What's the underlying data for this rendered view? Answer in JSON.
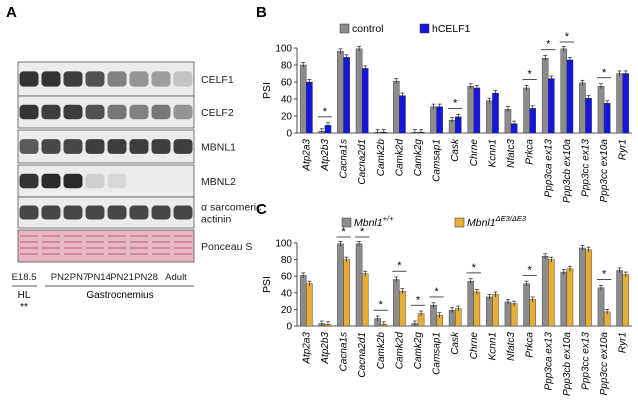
{
  "panels": {
    "a": "A",
    "b": "B",
    "c": "C"
  },
  "blot": {
    "bands": [
      {
        "label": "CELF1",
        "levels": [
          0.95,
          0.95,
          0.9,
          0.8,
          0.55,
          0.45,
          0.4,
          0.2
        ]
      },
      {
        "label": "CELF2",
        "levels": [
          0.95,
          0.9,
          0.9,
          0.8,
          0.6,
          0.55,
          0.6,
          0.45
        ]
      },
      {
        "label": "MBNL1",
        "levels": [
          0.75,
          0.85,
          0.85,
          0.9,
          0.9,
          0.9,
          0.9,
          0.9
        ]
      },
      {
        "label": "MBNL2",
        "levels": [
          0.95,
          1.0,
          1.0,
          0.15,
          0.1,
          0.0,
          0.0,
          0.0
        ]
      },
      {
        "label": "α sarcomeric\nactinin",
        "levels": [
          0.85,
          0.85,
          0.85,
          0.85,
          0.85,
          0.85,
          0.85,
          0.85
        ]
      },
      {
        "label": "Ponceau S",
        "levels": [
          0.5,
          0.5,
          0.5,
          0.5,
          0.5,
          0.5,
          0.5,
          0.5
        ]
      }
    ],
    "lanes": [
      "E18.5",
      "PN2",
      "PN7",
      "PN14",
      "PN21",
      "PN28",
      "Adult"
    ],
    "groups": [
      {
        "label": "HL",
        "sub": "**"
      },
      {
        "label": "Gastrocnemius"
      }
    ],
    "colors": {
      "band": "#2a2a2a",
      "background": "#ececec",
      "ponceau": "#e8b7c4",
      "ponceau_band": "#c9788f"
    }
  },
  "chart_data": [
    {
      "type": "bar",
      "panel": "B",
      "ylabel": "PSI",
      "ylim": [
        0,
        100
      ],
      "yticks": [
        0,
        20,
        40,
        60,
        80,
        100
      ],
      "legend_position": "top",
      "categories": [
        "Atp2a3",
        "Atp2b3",
        "Cacna1s",
        "Cacna2d1",
        "Camk2b",
        "Camk2d",
        "Camk2g",
        "Camsap1",
        "Cask",
        "Chrne",
        "Kcnn1",
        "Nfatc3",
        "Prkca",
        "Ppp3ca ex13",
        "Ppp3cb ex10a",
        "Ppp3cc ex13",
        "Ppp3cc ex10a",
        "Ryr1"
      ],
      "series": [
        {
          "name": "control",
          "color": "#8c8c8c",
          "values": [
            80,
            2,
            96,
            99,
            1,
            61,
            1,
            31,
            15,
            55,
            38,
            28,
            53,
            88,
            99,
            59,
            55,
            70
          ]
        },
        {
          "name": "hCELF1",
          "color": "#1515dd",
          "values": [
            60,
            9,
            89,
            76,
            1,
            44,
            1,
            31,
            19,
            53,
            47,
            11,
            29,
            64,
            86,
            41,
            35,
            70
          ]
        }
      ],
      "significance": [
        {
          "category": "Atp2b3",
          "label": "*"
        },
        {
          "category": "Cask",
          "label": "*"
        },
        {
          "category": "Prkca",
          "label": "*"
        },
        {
          "category": "Ppp3ca ex13",
          "label": "*"
        },
        {
          "category": "Ppp3cb ex10a",
          "label": "*"
        },
        {
          "category": "Ppp3cc ex10a",
          "label": "*"
        }
      ]
    },
    {
      "type": "bar",
      "panel": "C",
      "ylabel": "PSI",
      "ylim": [
        0,
        100
      ],
      "yticks": [
        0,
        20,
        40,
        60,
        80,
        100
      ],
      "legend_position": "top",
      "categories": [
        "Atp2a3",
        "Atp2b3",
        "Cacna1s",
        "Cacna2d1",
        "Camk2b",
        "Camk2d",
        "Camk2g",
        "Camsap1",
        "Cask",
        "Chrne",
        "Kcnn1",
        "Nfatc3",
        "Prkca",
        "Ppp3ca ex13",
        "Ppp3cb ex10a",
        "Ppp3cc ex13",
        "Ppp3cc ex10a",
        "Ryr1"
      ],
      "series": [
        {
          "name": "Mbnl1",
          "sup": "+/+",
          "color": "#8c8c8c",
          "values": [
            61,
            3,
            99,
            99,
            9,
            56,
            3,
            25,
            19,
            54,
            35,
            29,
            51,
            84,
            65,
            94,
            46,
            67
          ]
        },
        {
          "name": "Mbnl1",
          "sup": "ΔE3/ΔE3",
          "color": "#e6ad3a",
          "values": [
            51,
            2,
            80,
            63,
            2,
            42,
            15,
            13,
            21,
            41,
            38,
            27,
            32,
            80,
            69,
            92,
            17,
            62
          ]
        }
      ],
      "significance": [
        {
          "category": "Cacna1s",
          "label": "*"
        },
        {
          "category": "Cacna2d1",
          "label": "*"
        },
        {
          "category": "Camk2b",
          "label": "*"
        },
        {
          "category": "Camk2d",
          "label": "*"
        },
        {
          "category": "Camk2g",
          "label": "*"
        },
        {
          "category": "Camsap1",
          "label": "*"
        },
        {
          "category": "Chrne",
          "label": "*"
        },
        {
          "category": "Prkca",
          "label": "*"
        },
        {
          "category": "Ppp3cc ex10a",
          "label": "*"
        }
      ]
    }
  ]
}
